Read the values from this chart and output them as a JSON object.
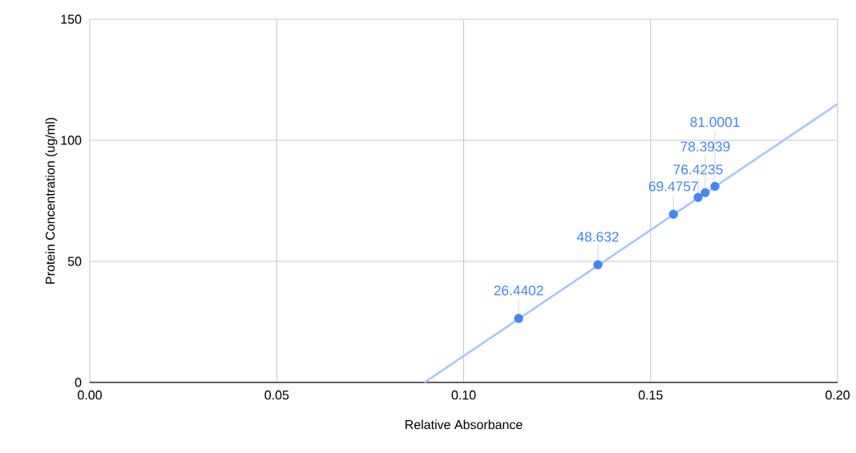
{
  "chart_data": {
    "type": "scatter",
    "xlabel": "Relative Absorbance",
    "ylabel": "Protein Concentration (ug/ml)",
    "series": [
      {
        "marker": "circle",
        "color": "#4285f4",
        "x": [
          0.1147,
          0.1359,
          0.1561,
          0.1627,
          0.1646,
          0.1672
        ],
        "values": [
          26.4402,
          48.632,
          69.4757,
          76.4235,
          78.3939,
          81.0001
        ],
        "value_labels": [
          "26.4402",
          "48.632",
          "69.4757",
          "76.4235",
          "78.3939",
          "81.0001"
        ]
      },
      {
        "type": "line",
        "marker": "none",
        "color": "#a8c7fa",
        "x": [
          0.0895,
          0.2
        ],
        "values": [
          0,
          115
        ]
      }
    ],
    "xlim": [
      0,
      0.2
    ],
    "ylim": [
      0,
      150
    ],
    "xticks": [
      {
        "value": 0,
        "label": "0.00"
      },
      {
        "value": 0.05,
        "label": "0.05"
      },
      {
        "value": 0.1,
        "label": "0.10"
      },
      {
        "value": 0.15,
        "label": "0.15"
      },
      {
        "value": 0.2,
        "label": "0.20"
      }
    ],
    "yticks": [
      0,
      50,
      100,
      150
    ],
    "grid": true
  }
}
